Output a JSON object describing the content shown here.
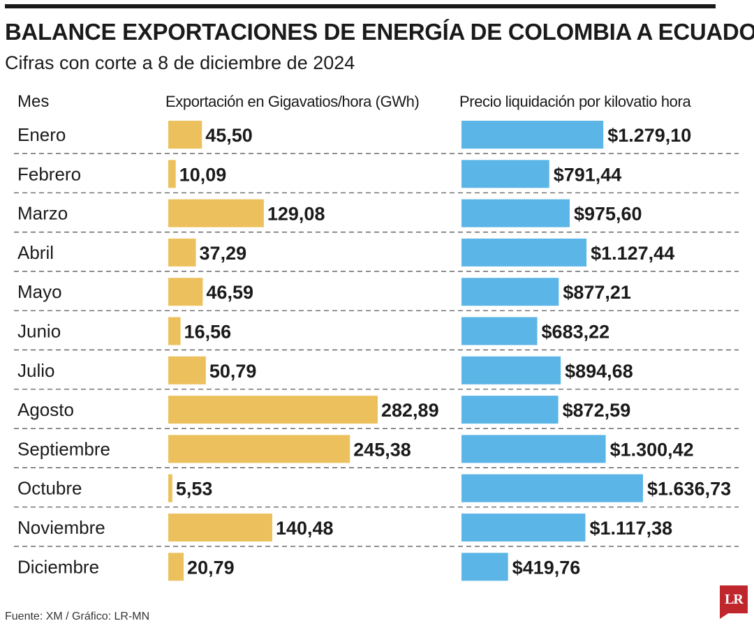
{
  "title": "BALANCE EXPORTACIONES DE ENERGÍA DE COLOMBIA A ECUADOR",
  "subtitle": "Cifras con corte a 8 de diciembre de 2024",
  "columns": {
    "month": "Mes",
    "export": "Exportación en Gigavatios/hora (GWh)",
    "price": "Precio liquidación por kilovatio hora"
  },
  "source": "Fuente: XM / Gráfico: LR-MN",
  "logo": "LR",
  "colors": {
    "export_bar": "#ecc15d",
    "price_bar": "#5cb5e7",
    "text": "#1a1a1a",
    "logo": "#c0272d"
  },
  "chart_data": [
    {
      "type": "bar",
      "orientation": "horizontal",
      "title": "Exportación en Gigavatios/hora (GWh)",
      "categories": [
        "Enero",
        "Febrero",
        "Marzo",
        "Abril",
        "Mayo",
        "Junio",
        "Julio",
        "Agosto",
        "Septiembre",
        "Octubre",
        "Noviembre",
        "Diciembre"
      ],
      "values": [
        45.5,
        10.09,
        129.08,
        37.29,
        46.59,
        16.56,
        50.79,
        282.89,
        245.38,
        5.53,
        140.48,
        20.79
      ],
      "labels": [
        "45,50",
        "10,09",
        "129,08",
        "37,29",
        "46,59",
        "16,56",
        "50,79",
        "282,89",
        "245,38",
        "5,53",
        "140,48",
        "20,79"
      ],
      "color": "#ecc15d"
    },
    {
      "type": "bar",
      "orientation": "horizontal",
      "title": "Precio liquidación por kilovatio hora",
      "categories": [
        "Enero",
        "Febrero",
        "Marzo",
        "Abril",
        "Mayo",
        "Junio",
        "Julio",
        "Agosto",
        "Septiembre",
        "Octubre",
        "Noviembre",
        "Diciembre"
      ],
      "values": [
        1279.1,
        791.44,
        975.6,
        1127.44,
        877.21,
        683.22,
        894.68,
        872.59,
        1300.42,
        1636.73,
        1117.38,
        419.76
      ],
      "labels": [
        "$1.279,10",
        "$791,44",
        "$975,60",
        "$1.127,44",
        "$877,21",
        "$683,22",
        "$894,68",
        "$872,59",
        "$1.300,42",
        "$1.636,73",
        "$1.117,38",
        "$419,76"
      ],
      "color": "#5cb5e7"
    }
  ]
}
